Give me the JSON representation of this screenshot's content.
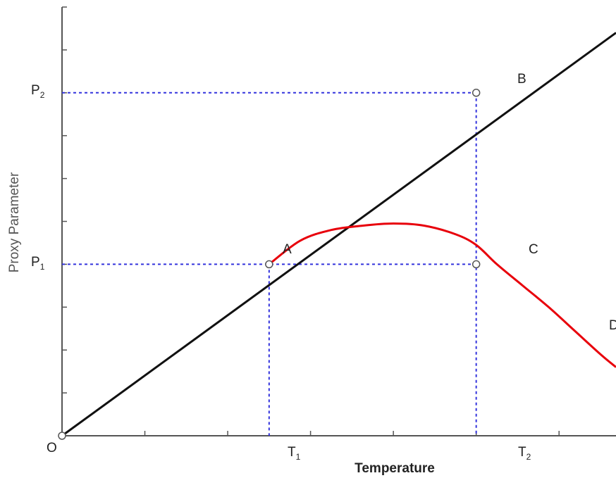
{
  "chart_data": {
    "type": "line",
    "xlabel": "Temperature",
    "ylabel": "Proxy Parameter",
    "xlim": [
      0,
      10.7
    ],
    "ylim": [
      0,
      10
    ],
    "x_ticks": [
      0,
      1.6,
      3.2,
      4.8,
      6.4,
      8.0,
      9.6
    ],
    "y_ticks": [
      1,
      2,
      3,
      4,
      5,
      6,
      7,
      8,
      9,
      10
    ],
    "grid": false,
    "legend": "none",
    "colors": {
      "linear": "#111111",
      "curve": "#e8000b",
      "guide": "#3333dd"
    },
    "series": [
      {
        "x": [
          0,
          10.7
        ],
        "y": [
          0,
          9.4
        ]
      },
      {
        "x": [
          4.0,
          4.6,
          5.2,
          5.8,
          6.4,
          7.0,
          7.6,
          8.0,
          8.4,
          8.9,
          9.4,
          9.9,
          10.4,
          10.7
        ],
        "y": [
          4.0,
          4.55,
          4.8,
          4.9,
          4.95,
          4.9,
          4.7,
          4.45,
          4.0,
          3.5,
          3.0,
          2.45,
          1.9,
          1.6
        ]
      }
    ],
    "guides": {
      "T1": 4.0,
      "T2": 8.0,
      "P1": 4.0,
      "P2": 8.0
    },
    "points": [
      {
        "label": "O",
        "x": 0,
        "y": 0
      },
      {
        "label": "A",
        "x": 4.0,
        "y": 4.0
      },
      {
        "label": "B",
        "x": 8.0,
        "y": 8.0
      },
      {
        "label": "C",
        "x": 8.0,
        "y": 4.0
      },
      {
        "label": "D",
        "x": 10.7,
        "y": 1.6
      }
    ],
    "x_marks": [
      {
        "main": "T",
        "sub": "1"
      },
      {
        "main": "T",
        "sub": "2"
      }
    ],
    "y_marks": [
      {
        "main": "P",
        "sub": "1"
      },
      {
        "main": "P",
        "sub": "2"
      }
    ]
  }
}
